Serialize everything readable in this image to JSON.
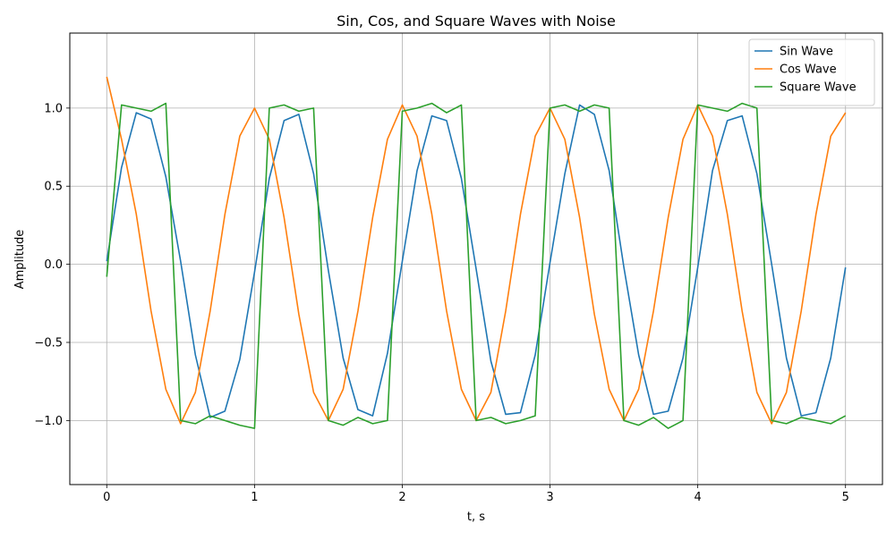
{
  "chart_data": {
    "type": "line",
    "title": "Sin, Cos, and Square Waves with Noise",
    "xlabel": "t, s",
    "ylabel": "Amplitude",
    "xlim": [
      -0.25,
      5.25
    ],
    "ylim": [
      -1.41,
      1.48
    ],
    "x_ticks": [
      0,
      1,
      2,
      3,
      4,
      5
    ],
    "x_tick_labels": [
      "0",
      "1",
      "2",
      "3",
      "4",
      "5"
    ],
    "y_ticks": [
      -1.0,
      -0.5,
      0.0,
      0.5,
      1.0
    ],
    "y_tick_labels": [
      "−1.0",
      "−0.5",
      "0.0",
      "0.5",
      "1.0"
    ],
    "grid": true,
    "legend_position": "top-right",
    "x": [
      0.0,
      0.1,
      0.2,
      0.3,
      0.4,
      0.5,
      0.6,
      0.7,
      0.8,
      0.9,
      1.0,
      1.1,
      1.2,
      1.3,
      1.4,
      1.5,
      1.6,
      1.7,
      1.8,
      1.9,
      2.0,
      2.1,
      2.2,
      2.3,
      2.4,
      2.5,
      2.6,
      2.7,
      2.8,
      2.9,
      3.0,
      3.1,
      3.2,
      3.3,
      3.4,
      3.5,
      3.6,
      3.7,
      3.8,
      3.9,
      4.0,
      4.1,
      4.2,
      4.3,
      4.4,
      4.5,
      4.6,
      4.7,
      4.8,
      4.9,
      5.0
    ],
    "series": [
      {
        "name": "Sin Wave",
        "color": "#1f77b4",
        "values": [
          0.02,
          0.62,
          0.97,
          0.93,
          0.56,
          0.02,
          -0.58,
          -0.98,
          -0.94,
          -0.61,
          -0.05,
          0.55,
          0.92,
          0.96,
          0.58,
          -0.04,
          -0.6,
          -0.93,
          -0.97,
          -0.57,
          0.02,
          0.6,
          0.95,
          0.92,
          0.55,
          -0.03,
          -0.62,
          -0.96,
          -0.95,
          -0.58,
          0.01,
          0.58,
          1.02,
          0.96,
          0.6,
          -0.02,
          -0.58,
          -0.96,
          -0.94,
          -0.6,
          -0.02,
          0.6,
          0.92,
          0.95,
          0.58,
          0.0,
          -0.6,
          -0.97,
          -0.95,
          -0.6,
          -0.02
        ]
      },
      {
        "name": "Cos Wave",
        "color": "#ff7f0e",
        "values": [
          1.2,
          0.8,
          0.32,
          -0.3,
          -0.8,
          -1.02,
          -0.82,
          -0.3,
          0.32,
          0.82,
          1.0,
          0.8,
          0.3,
          -0.32,
          -0.82,
          -1.0,
          -0.8,
          -0.3,
          0.3,
          0.8,
          1.02,
          0.82,
          0.32,
          -0.3,
          -0.8,
          -1.0,
          -0.82,
          -0.3,
          0.32,
          0.82,
          1.0,
          0.8,
          0.3,
          -0.32,
          -0.8,
          -1.0,
          -0.8,
          -0.3,
          0.3,
          0.8,
          1.02,
          0.82,
          0.32,
          -0.3,
          -0.82,
          -1.02,
          -0.82,
          -0.3,
          0.32,
          0.82,
          0.97
        ]
      },
      {
        "name": "Square Wave",
        "color": "#2ca02c",
        "values": [
          -0.08,
          1.02,
          1.0,
          0.98,
          1.03,
          -1.0,
          -1.02,
          -0.97,
          -1.0,
          -1.03,
          -1.05,
          1.0,
          1.02,
          0.98,
          1.0,
          -1.0,
          -1.03,
          -0.98,
          -1.02,
          -1.0,
          0.98,
          1.0,
          1.03,
          0.97,
          1.02,
          -1.0,
          -0.98,
          -1.02,
          -1.0,
          -0.97,
          1.0,
          1.02,
          0.98,
          1.02,
          1.0,
          -1.0,
          -1.03,
          -0.98,
          -1.05,
          -1.0,
          1.02,
          1.0,
          0.98,
          1.03,
          1.0,
          -1.0,
          -1.02,
          -0.98,
          -1.0,
          -1.02,
          -0.97
        ]
      }
    ]
  }
}
